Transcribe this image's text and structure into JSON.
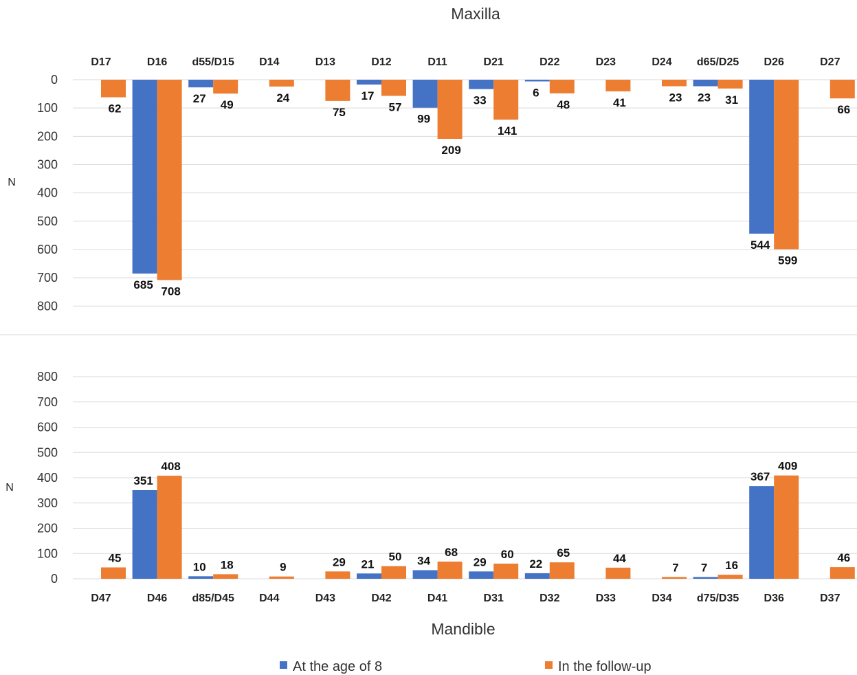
{
  "chart_data": [
    {
      "type": "bar",
      "title": "Maxilla",
      "ylabel": "N",
      "ylim": [
        0,
        800
      ],
      "y_ticks": [
        0,
        100,
        200,
        300,
        400,
        500,
        600,
        700,
        800
      ],
      "inverted": true,
      "category_axis": "top",
      "grid": true,
      "categories": [
        "D17",
        "D16",
        "d55/D15",
        "D14",
        "D13",
        "D12",
        "D11",
        "D21",
        "D22",
        "D23",
        "D24",
        "d65/D25",
        "D26",
        "D27"
      ],
      "series": [
        {
          "name": "At the age of 8",
          "color": "#4472C4",
          "values": [
            null,
            685,
            27,
            null,
            null,
            17,
            99,
            33,
            6,
            null,
            null,
            23,
            544,
            null
          ]
        },
        {
          "name": "In the follow-up",
          "color": "#ED7D31",
          "values": [
            62,
            708,
            49,
            24,
            75,
            57,
            209,
            141,
            48,
            41,
            23,
            31,
            599,
            66
          ]
        }
      ]
    },
    {
      "type": "bar",
      "title": "Mandible",
      "ylabel": "N",
      "ylim": [
        0,
        800
      ],
      "y_ticks": [
        0,
        100,
        200,
        300,
        400,
        500,
        600,
        700,
        800
      ],
      "inverted": false,
      "category_axis": "bottom",
      "grid": true,
      "categories": [
        "D47",
        "D46",
        "d85/D45",
        "D44",
        "D43",
        "D42",
        "D41",
        "D31",
        "D32",
        "D33",
        "D34",
        "d75/D35",
        "D36",
        "D37"
      ],
      "series": [
        {
          "name": "At the age of 8",
          "color": "#4472C4",
          "values": [
            null,
            351,
            10,
            null,
            null,
            21,
            34,
            29,
            22,
            null,
            null,
            7,
            367,
            null
          ]
        },
        {
          "name": "In the follow-up",
          "color": "#ED7D31",
          "values": [
            45,
            408,
            18,
            9,
            29,
            50,
            68,
            60,
            65,
            44,
            7,
            16,
            409,
            46
          ]
        }
      ]
    }
  ],
  "legend": {
    "placement": "bottom",
    "items": [
      {
        "label": "At the age of 8",
        "color": "#4472C4"
      },
      {
        "label": "In the follow-up",
        "color": "#ED7D31"
      }
    ]
  }
}
